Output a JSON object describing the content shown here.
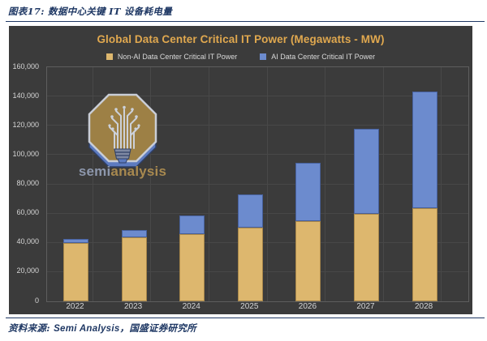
{
  "page": {
    "figure_caption": "图表17: 数据中心关键 IT 设备耗电量",
    "source_label": "资料来源:",
    "source_text": "Semi Analysis，国盛证券研究所"
  },
  "watermark": {
    "brand_semi": "semi",
    "brand_analysis": "analysis"
  },
  "colors": {
    "accent_navy": "#1f3864",
    "chart_background": "#3b3b3b",
    "title_gold": "#e0a84f",
    "axis_text": "#d6d6d6",
    "gridline": "#484848",
    "plot_border": "#5e5e5e",
    "wordmark_semi": "#8d97ac",
    "wordmark_analysis": "#a8894f"
  },
  "chart_data": {
    "type": "bar",
    "stacked": true,
    "title": "Global Data Center Critical IT Power (Megawatts - MW)",
    "categories": [
      "2022",
      "2023",
      "2024",
      "2025",
      "2026",
      "2027",
      "2028"
    ],
    "series": [
      {
        "name": "Non-AI Data Center Critical IT Power",
        "color": "#ddb76e",
        "border_color": "#a8874a",
        "values": [
          40000,
          44000,
          46000,
          50500,
          55000,
          60000,
          63500
        ]
      },
      {
        "name": "AI Data Center Critical IT Power",
        "color": "#6c8bce",
        "border_color": "#47619e",
        "values": [
          2500,
          5000,
          12500,
          22500,
          39500,
          58000,
          80000
        ]
      }
    ],
    "totals": [
      42500,
      49000,
      58500,
      73000,
      94500,
      118000,
      143500
    ],
    "xlabel": "",
    "ylabel": "",
    "ylim": [
      0,
      160000
    ],
    "ytick_step": 20000,
    "yticks": [
      "160,000",
      "140,000",
      "120,000",
      "100,000",
      "80,000",
      "60,000",
      "40,000",
      "20,000",
      "0"
    ],
    "grid": true,
    "legend_position": "top"
  }
}
